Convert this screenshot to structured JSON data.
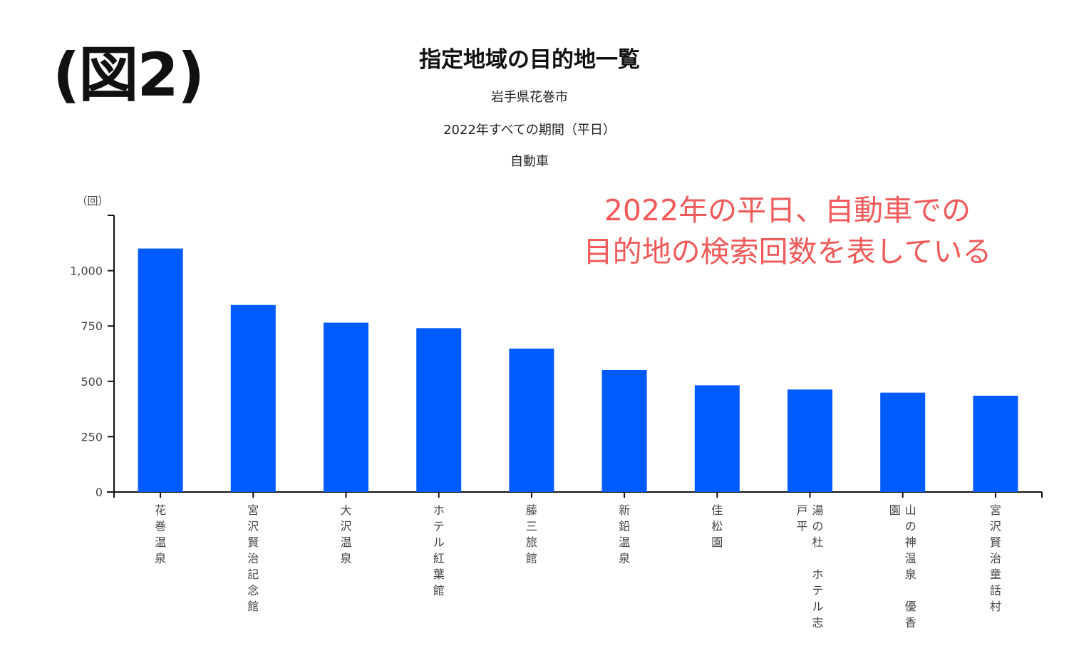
{
  "figure_label": "(図2)",
  "annotation": {
    "line1": "2022年の平日、自動車での",
    "line2": "目的地の検索回数を表している"
  },
  "colors": {
    "bar": "#005bff",
    "annotation": "#f05a5a",
    "axis": "#111111"
  },
  "chart_data": {
    "type": "bar",
    "title": "指定地域の目的地一覧",
    "subtitles": [
      "岩手県花巻市",
      "2022年すべての期間（平日）",
      "自動車"
    ],
    "ylabel": "（回）",
    "ylim": [
      0,
      1250
    ],
    "yticks": [
      0,
      250,
      500,
      750,
      1000
    ],
    "ytick_labels": [
      "0",
      "250",
      "500",
      "750",
      "1,000"
    ],
    "grid": false,
    "categories": [
      "花巻温泉",
      "宮沢賢治記念館",
      "大沢温泉",
      "ホテル紅葉館",
      "藤三旅館",
      "新鉛温泉",
      "佳松園",
      [
        "湯の杜　ホテル志",
        "戸平"
      ],
      [
        "山の神温泉　優香",
        "園"
      ],
      "宮沢賢治童話村"
    ],
    "values": [
      1100,
      845,
      765,
      740,
      648,
      551,
      482,
      463,
      449,
      435
    ]
  }
}
